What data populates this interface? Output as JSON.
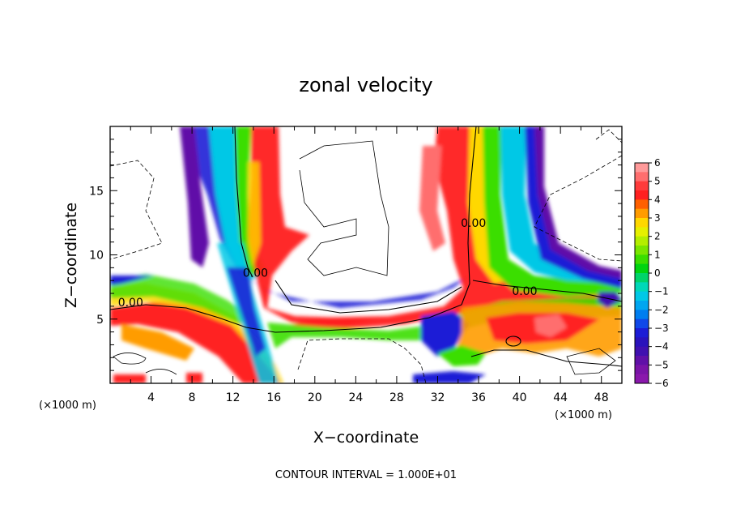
{
  "chart_data": {
    "type": "heatmap",
    "title": "zonal velocity",
    "xlabel": "X−coordinate",
    "ylabel": "Z−coordinate",
    "x_unit_left": "(×1000 m)",
    "x_unit_right": "(×1000 m)",
    "footer": "CONTOUR INTERVAL = 1.000E+01",
    "xlim": [
      0,
      50
    ],
    "ylim": [
      0,
      20
    ],
    "x_ticks": [
      4,
      8,
      12,
      16,
      20,
      24,
      28,
      32,
      36,
      40,
      44,
      48
    ],
    "x_tick_labels": [
      "4",
      "8",
      "12",
      "16",
      "20",
      "24",
      "28",
      "32",
      "36",
      "40",
      "44",
      "48"
    ],
    "y_ticks": [
      5,
      10,
      15
    ],
    "y_tick_labels": [
      "5",
      "10",
      "15"
    ],
    "contour_labels": [
      {
        "text": "0.00",
        "x": 2,
        "z": 6.3
      },
      {
        "text": "0.00",
        "x": 14.2,
        "z": 8.6
      },
      {
        "text": "0.00",
        "x": 35.5,
        "z": 12.5
      },
      {
        "text": "0.00",
        "x": 40.5,
        "z": 7.2
      }
    ],
    "colorbar": {
      "min": -6,
      "max": 6,
      "tick_labels": [
        "6",
        "5",
        "4",
        "3",
        "2",
        "1",
        "0",
        "−1",
        "−2",
        "−3",
        "−4",
        "−5",
        "−6"
      ],
      "colors": [
        "#ff9a9a",
        "#ff6e6e",
        "#ff3b3b",
        "#ff2020",
        "#ff6000",
        "#ff9c00",
        "#ffd800",
        "#e6f000",
        "#b4ee00",
        "#7ae600",
        "#3ade00",
        "#00d410",
        "#00d46a",
        "#00d8b8",
        "#00c8e6",
        "#00a6f0",
        "#007ef0",
        "#1048e8",
        "#1c1cd6",
        "#2a12bc",
        "#4010b0",
        "#6010a8",
        "#7a14a8",
        "#8a18ac"
      ]
    }
  }
}
